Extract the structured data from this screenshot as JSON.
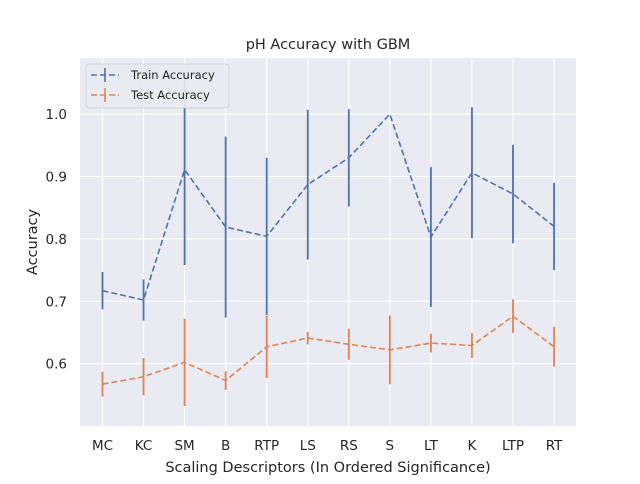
{
  "chart_data": {
    "type": "line",
    "title": "pH Accuracy with GBM",
    "xlabel": "Scaling Descriptors (In Ordered Significance)",
    "ylabel": "Accuracy",
    "categories": [
      "MC",
      "KC",
      "SM",
      "B",
      "RTP",
      "LS",
      "RS",
      "S",
      "LT",
      "K",
      "LTP",
      "RT"
    ],
    "ylim": [
      0.5,
      1.09
    ],
    "yticks": [
      0.6,
      0.7,
      0.8,
      0.9,
      1.0
    ],
    "ytick_labels": [
      "0.6",
      "0.7",
      "0.8",
      "0.9",
      "1.0"
    ],
    "grid": true,
    "legend_position": "top-left",
    "series": [
      {
        "name": "Train Accuracy",
        "color": "#4c72b0",
        "linestyle": "dashed",
        "values": [
          0.717,
          0.702,
          0.911,
          0.819,
          0.804,
          0.887,
          0.93,
          1.0,
          0.803,
          0.906,
          0.872,
          0.82
        ],
        "errors": [
          0.03,
          0.033,
          0.153,
          0.145,
          0.126,
          0.12,
          0.078,
          0.0,
          0.112,
          0.105,
          0.079,
          0.07
        ]
      },
      {
        "name": "Test Accuracy",
        "color": "#dd8452",
        "linestyle": "dashed",
        "values": [
          0.567,
          0.579,
          0.602,
          0.573,
          0.627,
          0.641,
          0.631,
          0.622,
          0.633,
          0.629,
          0.676,
          0.627
        ],
        "errors": [
          0.02,
          0.03,
          0.07,
          0.015,
          0.05,
          0.01,
          0.025,
          0.055,
          0.015,
          0.02,
          0.027,
          0.032
        ]
      }
    ]
  }
}
